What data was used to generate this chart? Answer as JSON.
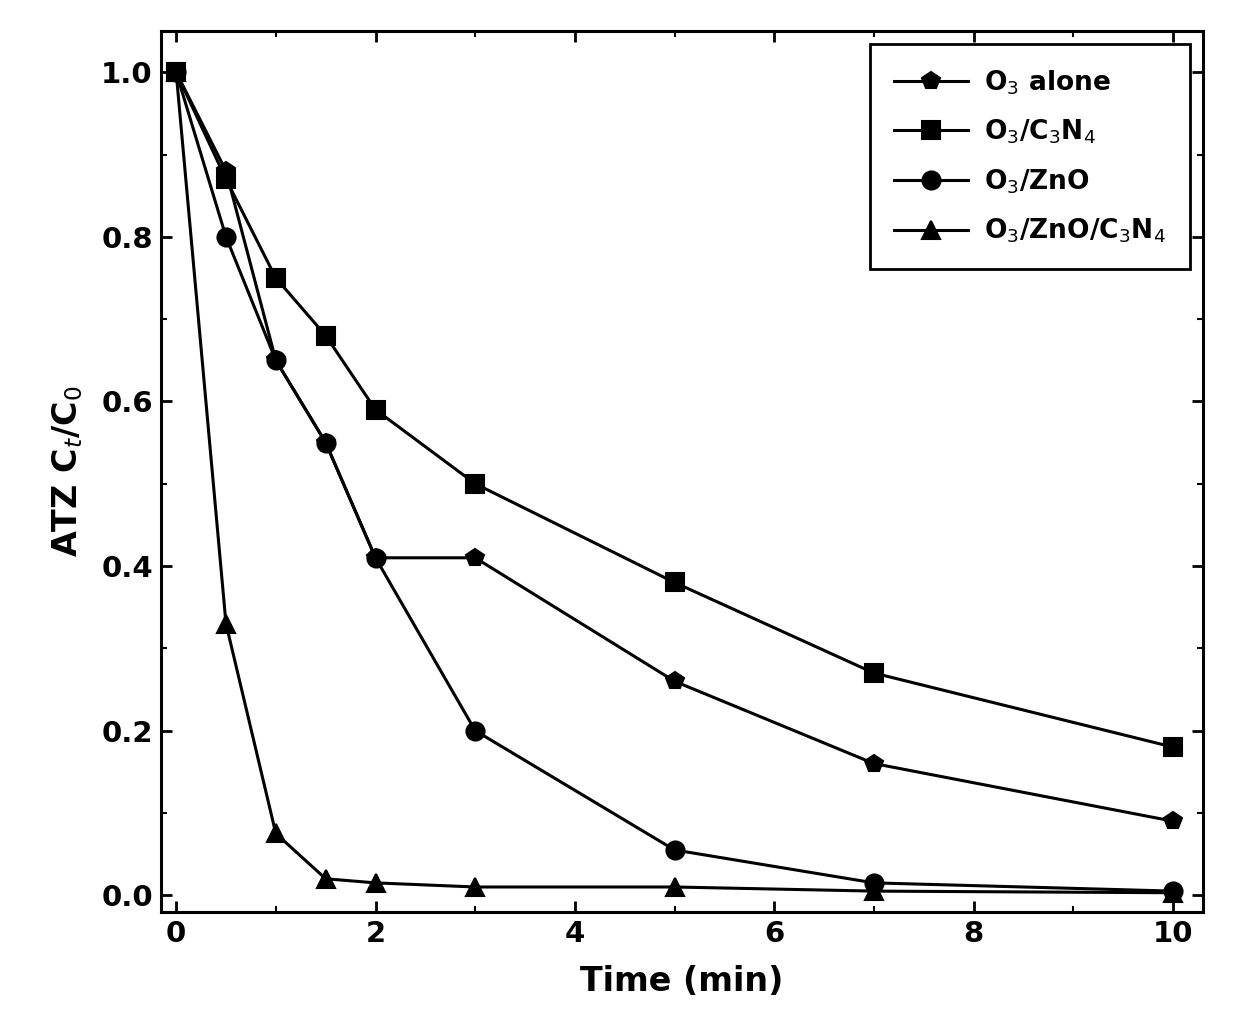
{
  "series": [
    {
      "label": "O$_3$ alone",
      "marker": "p",
      "x": [
        0,
        0.5,
        1,
        1.5,
        2,
        3,
        5,
        7,
        10
      ],
      "y": [
        1.0,
        0.88,
        0.65,
        0.55,
        0.41,
        0.41,
        0.26,
        0.16,
        0.09
      ]
    },
    {
      "label": "O$_3$/C$_3$N$_4$",
      "marker": "s",
      "x": [
        0,
        0.5,
        1,
        1.5,
        2,
        3,
        5,
        7,
        10
      ],
      "y": [
        1.0,
        0.87,
        0.75,
        0.68,
        0.59,
        0.5,
        0.38,
        0.27,
        0.18
      ]
    },
    {
      "label": "O$_3$/ZnO",
      "marker": "o",
      "x": [
        0,
        0.5,
        1,
        1.5,
        2,
        3,
        5,
        7,
        10
      ],
      "y": [
        1.0,
        0.8,
        0.65,
        0.55,
        0.41,
        0.2,
        0.055,
        0.015,
        0.005
      ]
    },
    {
      "label": "O$_3$/ZnO/C$_3$N$_4$",
      "marker": "^",
      "x": [
        0,
        0.5,
        1,
        1.5,
        2,
        3,
        5,
        7,
        10
      ],
      "y": [
        1.0,
        0.33,
        0.075,
        0.02,
        0.015,
        0.01,
        0.01,
        0.005,
        0.003
      ]
    }
  ],
  "xlabel": "Time (min)",
  "ylabel": "ATZ C$_t$/C$_0$",
  "xlim": [
    -0.15,
    10.3
  ],
  "ylim": [
    -0.02,
    1.05
  ],
  "xticks": [
    0,
    2,
    4,
    6,
    8,
    10
  ],
  "yticks": [
    0.0,
    0.2,
    0.4,
    0.6,
    0.8,
    1.0
  ],
  "line_color": "#000000",
  "marker_color": "#000000",
  "background_color": "#ffffff",
  "linewidth": 2.2,
  "markersize": 13,
  "legend_fontsize": 19,
  "axis_fontsize": 24,
  "tick_fontsize": 21
}
